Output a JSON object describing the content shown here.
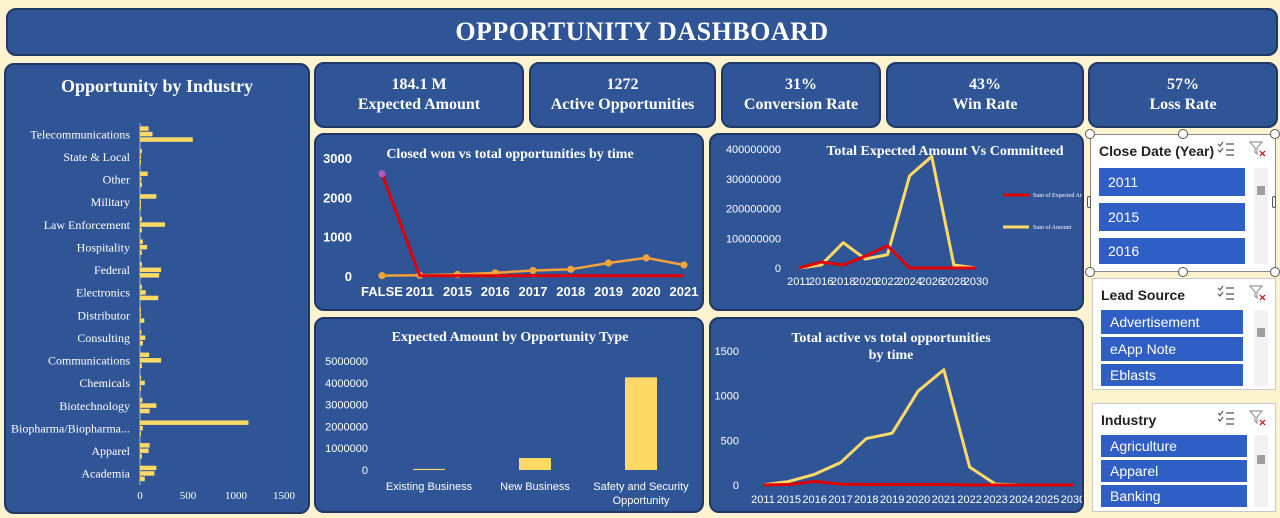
{
  "header": {
    "title": "OPPORTUNITY DASHBOARD"
  },
  "kpis": [
    {
      "value": "184.1 M",
      "label": "Expected Amount"
    },
    {
      "value": "1272",
      "label": "Active Opportunities"
    },
    {
      "value": "31%",
      "label": "Conversion Rate"
    },
    {
      "value": "43%",
      "label": "Win Rate"
    },
    {
      "value": "57%",
      "label": "Loss Rate"
    }
  ],
  "slicers": [
    {
      "title": "Close Date (Year)",
      "items": [
        "2011",
        "2015",
        "2016"
      ]
    },
    {
      "title": "Lead Source",
      "items": [
        "Advertisement",
        "eApp Note",
        "Eblasts"
      ]
    },
    {
      "title": "Industry",
      "items": [
        "Agriculture",
        "Apparel",
        "Banking"
      ]
    }
  ],
  "colors": {
    "panel": "#2f5597",
    "frame": "#fdf3d0",
    "gold": "#ffd966",
    "red": "#e00000",
    "orange": "#f4a23a"
  },
  "chart_data": [
    {
      "type": "bar",
      "orientation": "horizontal",
      "title": "Opportunity by Industry",
      "categories": [
        "Telecommunications",
        "State & Local",
        "Other",
        "Military",
        "Law Enforcement",
        "Hospitality",
        "Federal",
        "Electronics",
        "Distributor",
        "Consulting",
        "Communications",
        "Chemicals",
        "Biotechnology",
        "Biopharma/Biopharma...",
        "Apparel",
        "Academia"
      ],
      "series": [
        {
          "values": [
            90,
            20,
            80,
            170,
            20,
            30,
            20,
            20,
            10,
            15,
            95,
            10,
            25,
            1130,
            100,
            170
          ]
        },
        {
          "values": [
            130,
            10,
            15,
            10,
            260,
            75,
            220,
            60,
            10,
            55,
            220,
            50,
            170,
            30,
            90,
            150
          ]
        },
        {
          "values": [
            550,
            5,
            20,
            10,
            20,
            20,
            200,
            190,
            45,
            30,
            20,
            10,
            100,
            10,
            20,
            50
          ]
        }
      ],
      "xticks": [
        "0",
        "500",
        "1000",
        "1500"
      ],
      "xlim": [
        0,
        1500
      ]
    },
    {
      "type": "line",
      "title": "Closed won vs total opportunities by time",
      "categories": [
        "FALSE",
        "2011",
        "2015",
        "2016",
        "2017",
        "2018",
        "2019",
        "2020",
        "2021"
      ],
      "series": [
        {
          "values": [
            2600,
            10,
            5,
            5,
            5,
            5,
            5,
            5,
            5
          ]
        },
        {
          "values": [
            10,
            20,
            40,
            80,
            140,
            170,
            330,
            460,
            280
          ]
        }
      ],
      "yticks": [
        "0",
        "1000",
        "2000",
        "3000"
      ],
      "ylim": [
        0,
        3000
      ]
    },
    {
      "type": "line",
      "title": "Total Expected Amount Vs Committeed",
      "x": [
        2011,
        2016,
        2018,
        2020,
        2022,
        2024,
        2026,
        2028,
        2030
      ],
      "series": [
        {
          "name": "Sum of Expected Amount",
          "values": [
            0,
            20000000,
            10000000,
            40000000,
            75000000,
            0,
            0,
            0,
            0
          ]
        },
        {
          "name": "Sum of Amount",
          "values": [
            0,
            10000000,
            85000000,
            30000000,
            45000000,
            310000000,
            375000000,
            10000000,
            0
          ]
        }
      ],
      "xticks": [
        "2011",
        "2016",
        "2018",
        "2020",
        "2022",
        "2024",
        "2026",
        "2028",
        "2030"
      ],
      "yticks": [
        "0",
        "100000000",
        "200000000",
        "300000000",
        "400000000"
      ],
      "ylim": [
        0,
        400000000
      ]
    },
    {
      "type": "bar",
      "title": "Expected Amount by Opportunity Type",
      "categories": [
        "Existing Business",
        "New Business",
        "Safety and Security Opportunity"
      ],
      "values": [
        50000,
        550000,
        4250000
      ],
      "yticks": [
        "0",
        "1000000",
        "2000000",
        "3000000",
        "4000000",
        "5000000"
      ],
      "ylim": [
        0,
        5000000
      ]
    },
    {
      "type": "line",
      "title": "Total active vs total opportunities by time",
      "xticks": [
        "2011",
        "2015",
        "2016",
        "2017",
        "2018",
        "2019",
        "2020",
        "2021",
        "2022",
        "2023",
        "2024",
        "2025",
        "2030"
      ],
      "series": [
        {
          "values": [
            0,
            5,
            40,
            10,
            5,
            5,
            5,
            5,
            0,
            0,
            0,
            0,
            0
          ]
        },
        {
          "values": [
            0,
            40,
            120,
            250,
            520,
            580,
            1050,
            1290,
            200,
            10,
            0,
            0,
            0
          ]
        }
      ],
      "yticks": [
        "0",
        "500",
        "1000",
        "1500"
      ],
      "ylim": [
        0,
        1500
      ]
    }
  ]
}
